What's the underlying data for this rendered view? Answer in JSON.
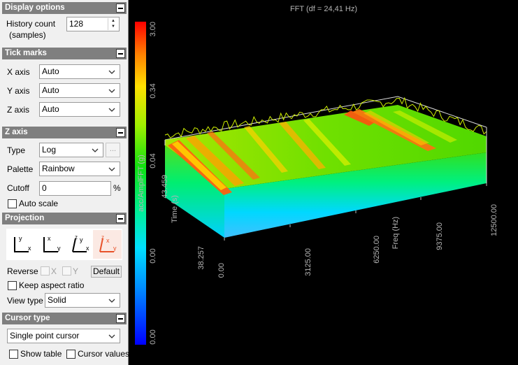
{
  "display_options": {
    "title": "Display options",
    "history_label": "History count",
    "history_sub": "(samples)",
    "history_value": "128"
  },
  "tick_marks": {
    "title": "Tick marks",
    "x_label": "X axis",
    "x_value": "Auto",
    "y_label": "Y axis",
    "y_value": "Auto",
    "z_label": "Z axis",
    "z_value": "Auto"
  },
  "z_axis": {
    "title": "Z axis",
    "type_label": "Type",
    "type_value": "Log",
    "more_button": "...",
    "palette_label": "Palette",
    "palette_value": "Rainbow",
    "cutoff_label": "Cutoff",
    "cutoff_value": "0",
    "cutoff_unit": "%",
    "auto_scale_label": "Auto scale"
  },
  "projection": {
    "title": "Projection",
    "reverse_label": "Reverse",
    "reverse_x": "X",
    "reverse_y": "Y",
    "default_button": "Default",
    "keep_aspect_label": "Keep aspect ratio",
    "view_type_label": "View type",
    "view_type_value": "Solid"
  },
  "cursor_type": {
    "title": "Cursor type",
    "value": "Single point cursor",
    "show_table_label": "Show table",
    "cursor_values_label": "Cursor values"
  },
  "plot": {
    "title": "FFT (df = 24,41 Hz)",
    "colorbar_label": "acc/AmplFFT (g)",
    "colorbar_ticks": [
      "3.00",
      "0.34",
      "0.04",
      "0.00",
      "0.00"
    ],
    "time_label": "Time (s)",
    "time_ticks": [
      "43.459",
      "38.257"
    ],
    "freq_label": "Freq (Hz)",
    "freq_ticks": [
      "0.00",
      "3125.00",
      "6250.00",
      "9375.00",
      "12500.00"
    ]
  },
  "colors": {
    "panel_bg": "#f0f0f0",
    "section_header": "#7f7f7f",
    "plot_bg": "#000000",
    "axis_text": "#b4b4b4",
    "active_projection": "#e8522a"
  }
}
